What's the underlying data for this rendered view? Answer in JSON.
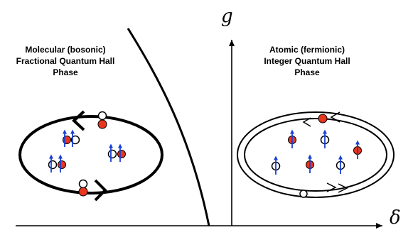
{
  "axes": {
    "x_symbol": "δ",
    "y_symbol": "g"
  },
  "phases": {
    "left": {
      "lines": [
        "Molecular (bosonic)",
        "Fractional Quantum Hall",
        "Phase"
      ]
    },
    "right": {
      "lines": [
        "Atomic (fermionic)",
        "Integer Quantum Hall",
        "Phase"
      ]
    }
  },
  "colors": {
    "particle_red": "#e8361f",
    "spin_arrow_blue": "#1a3fd6",
    "line": "#000000"
  }
}
